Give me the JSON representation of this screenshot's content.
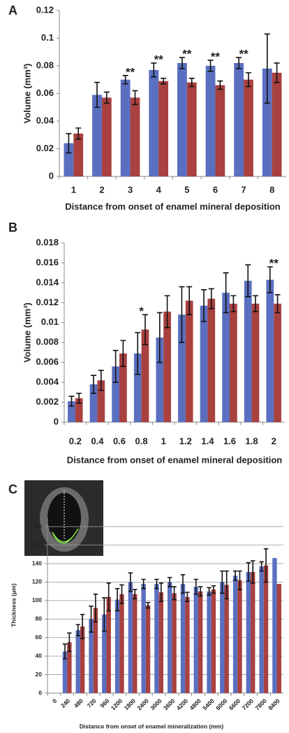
{
  "chart_data": [
    {
      "type": "bar",
      "panel": "A",
      "ylabel": "Volume (mm³)",
      "xlabel": "Distance from onset of enamel  mineral deposition",
      "categories": [
        "1",
        "2",
        "3",
        "4",
        "5",
        "6",
        "7",
        "8"
      ],
      "series": [
        {
          "color": "#5a6fc0",
          "values": [
            0.024,
            0.059,
            0.07,
            0.077,
            0.082,
            0.08,
            0.082,
            0.078
          ],
          "errors": [
            0.007,
            0.009,
            0.003,
            0.005,
            0.004,
            0.004,
            0.004,
            0.025
          ]
        },
        {
          "color": "#a8413f",
          "values": [
            0.031,
            0.057,
            0.057,
            0.069,
            0.068,
            0.066,
            0.07,
            0.075
          ],
          "errors": [
            0.004,
            0.004,
            0.005,
            0.002,
            0.003,
            0.003,
            0.005,
            0.007
          ]
        }
      ],
      "annotations": [
        {
          "text": "**",
          "category": "3"
        },
        {
          "text": "**",
          "category": "4"
        },
        {
          "text": "**",
          "category": "5"
        },
        {
          "text": "**",
          "category": "6"
        },
        {
          "text": "**",
          "category": "7"
        }
      ],
      "ylim": [
        0,
        0.12
      ],
      "yticks": [
        0,
        0.02,
        0.04,
        0.06,
        0.08,
        0.1,
        0.12
      ],
      "grid": false,
      "xtick_rotation": 0
    },
    {
      "type": "bar",
      "panel": "B",
      "ylabel": "Volume (mm³)",
      "xlabel": "Distance from onset of enamel   mineral deposition",
      "categories": [
        "0.2",
        "0.4",
        "0.6",
        "0.8",
        "1",
        "1.2",
        "1.4",
        "1.6",
        "1.8",
        "2"
      ],
      "series": [
        {
          "color": "#5a6fc0",
          "values": [
            0.0021,
            0.0038,
            0.0056,
            0.0069,
            0.0085,
            0.0108,
            0.0117,
            0.013,
            0.0142,
            0.0143
          ],
          "errors": [
            0.0005,
            0.0009,
            0.0016,
            0.0021,
            0.0025,
            0.0028,
            0.0016,
            0.002,
            0.0016,
            0.0013
          ]
        },
        {
          "color": "#a8413f",
          "values": [
            0.0024,
            0.0042,
            0.0069,
            0.0093,
            0.0111,
            0.0122,
            0.0124,
            0.0119,
            0.0119,
            0.0119
          ],
          "errors": [
            0.0005,
            0.001,
            0.0013,
            0.0015,
            0.0016,
            0.0014,
            0.001,
            0.0008,
            0.0008,
            0.0009
          ]
        }
      ],
      "annotations": [
        {
          "text": "*",
          "category": "0.8"
        },
        {
          "text": "**",
          "category": "2"
        }
      ],
      "ylim": [
        0,
        0.018
      ],
      "yticks": [
        0,
        0.002,
        0.004,
        0.006,
        0.008,
        0.01,
        0.012,
        0.014,
        0.016,
        0.018
      ],
      "grid": false,
      "xtick_rotation": 0
    },
    {
      "type": "bar",
      "panel": "C",
      "ylabel": "Thickness (μm)",
      "xlabel": "Distance from onset of enamel mineralization (mm)",
      "categories": [
        "0",
        "240",
        "480",
        "720",
        "960",
        "1200",
        "1800",
        "2400",
        "3000",
        "3600",
        "4200",
        "4800",
        "5400",
        "6000",
        "6600",
        "7200",
        "7800",
        "8400"
      ],
      "series": [
        {
          "color": "#5a6fc0",
          "values": [
            null,
            45,
            68,
            80,
            85,
            101,
            120,
            118,
            118,
            120,
            118,
            115,
            110,
            120,
            127,
            131,
            137,
            146
          ],
          "errors": [
            null,
            8,
            6,
            14,
            18,
            12,
            10,
            5,
            5,
            5,
            10,
            8,
            4,
            12,
            5,
            10,
            5,
            null
          ]
        },
        {
          "color": "#a8413f",
          "values": [
            null,
            55,
            72,
            92,
            104,
            107,
            107,
            95,
            109,
            108,
            104,
            110,
            112,
            117,
            122,
            131,
            138,
            118
          ],
          "errors": [
            null,
            10,
            13,
            15,
            15,
            10,
            5,
            3,
            10,
            7,
            5,
            5,
            4,
            15,
            10,
            12,
            18,
            null
          ]
        }
      ],
      "annotations": [],
      "ylim": [
        0,
        190
      ],
      "yticks": [
        0,
        20,
        40,
        60,
        80,
        100,
        120,
        140,
        160,
        180
      ],
      "grid": true,
      "xtick_rotation": -45
    }
  ]
}
